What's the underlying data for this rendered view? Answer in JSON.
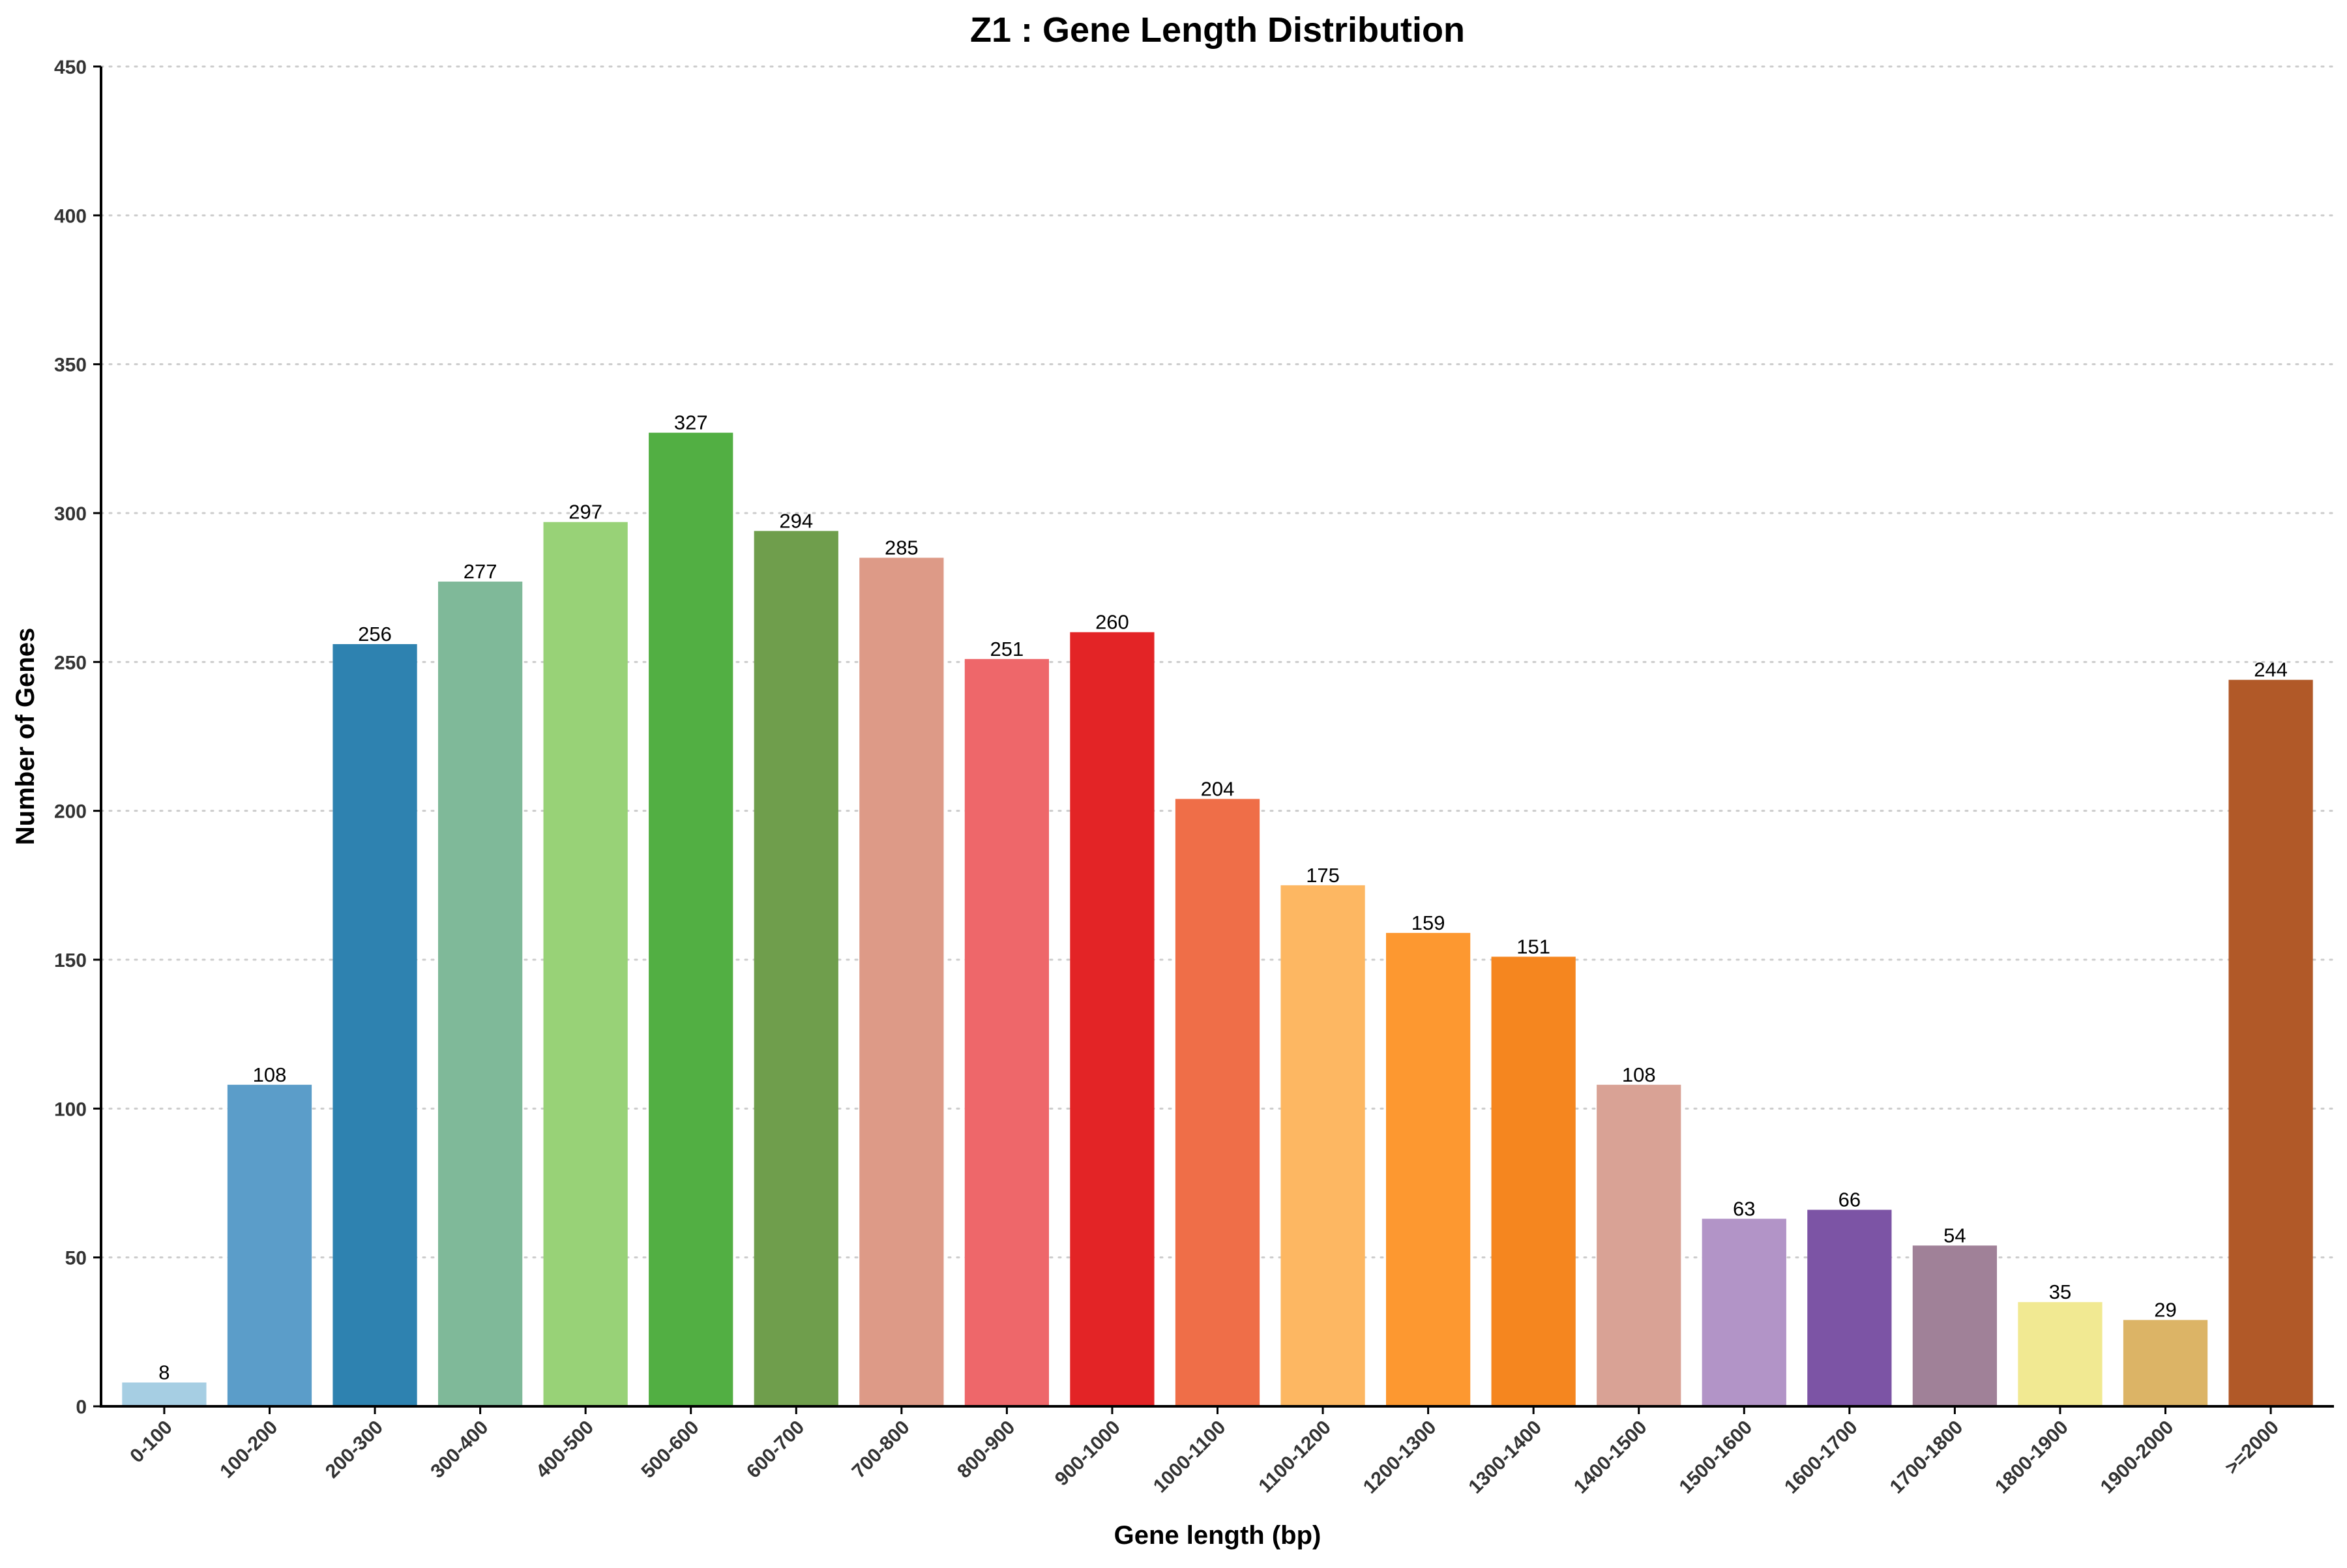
{
  "chart_data": {
    "type": "bar",
    "title": "Z1 : Gene Length Distribution",
    "xlabel": "Gene length (bp)",
    "ylabel": "Number of Genes",
    "ylim": [
      0,
      450
    ],
    "yticks": [
      0,
      50,
      100,
      150,
      200,
      250,
      300,
      350,
      400,
      450
    ],
    "grid": true,
    "categories": [
      "0-100",
      "100-200",
      "200-300",
      "300-400",
      "400-500",
      "500-600",
      "600-700",
      "700-800",
      "800-900",
      "900-1000",
      "1000-1100",
      "1100-1200",
      "1200-1300",
      "1300-1400",
      "1400-1500",
      "1500-1600",
      "1600-1700",
      "1700-1800",
      "1800-1900",
      "1900-2000",
      ">=2000"
    ],
    "values": [
      8,
      108,
      256,
      277,
      297,
      327,
      294,
      285,
      251,
      260,
      204,
      175,
      159,
      151,
      108,
      63,
      66,
      54,
      35,
      29,
      244
    ],
    "colors": [
      "#a6cee3",
      "#5b9dc9",
      "#2e82b0",
      "#7fb999",
      "#98d277",
      "#52af43",
      "#6f9e4c",
      "#dd9a87",
      "#ee676a",
      "#e32426",
      "#ef6e48",
      "#fdb762",
      "#fd9830",
      "#f5861f",
      "#d9a295",
      "#b294c7",
      "#7c54a5",
      "#a08198",
      "#f1e992",
      "#dcb466",
      "#b15928"
    ]
  }
}
